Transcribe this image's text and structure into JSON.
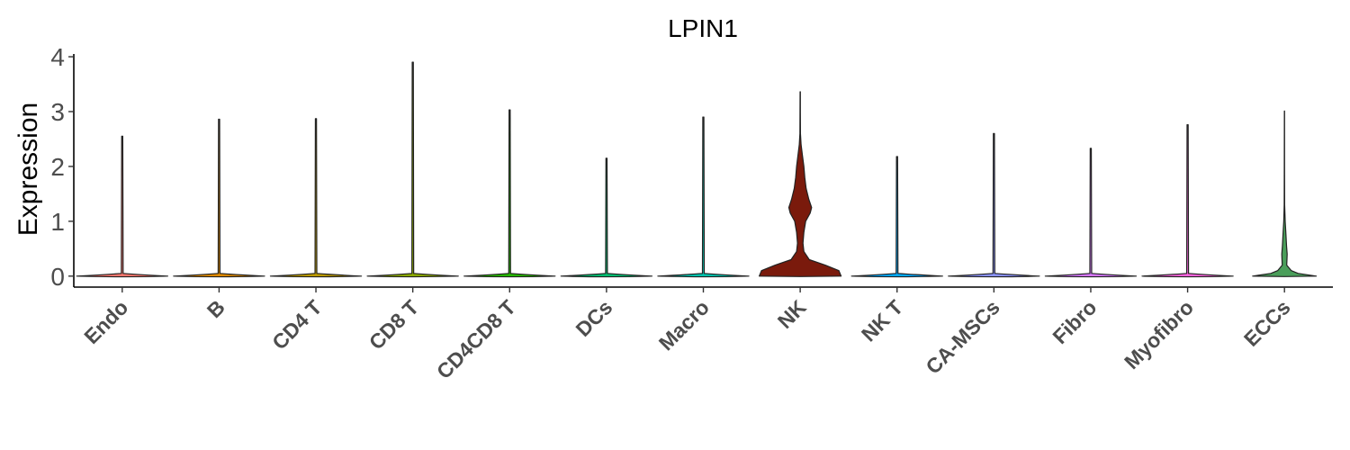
{
  "chart_data": {
    "type": "violin",
    "title": "LPIN1",
    "xlabel": "",
    "ylabel": "Expression",
    "ylim": [
      -0.2,
      4.05
    ],
    "yticks": [
      "0",
      "1",
      "2",
      "3",
      "4"
    ],
    "grid": false,
    "legend": "none",
    "categories": [
      "Endo",
      "B",
      "CD4 T",
      "CD8 T",
      "CD4CD8 T",
      "DCs",
      "Macro",
      "NK",
      "NK T",
      "CA-MSCs",
      "Fibro",
      "Myofibro",
      "ECCs"
    ],
    "max_values": [
      2.55,
      2.86,
      2.87,
      3.9,
      3.03,
      2.15,
      2.9,
      3.36,
      2.18,
      2.6,
      2.33,
      2.76,
      3.01
    ],
    "fill_colors": [
      "#F8766D",
      "#E18A00",
      "#BE9C00",
      "#8CAB00",
      "#24B700",
      "#00BE70",
      "#00C1AB",
      "#7a1a0c",
      "#00A9FF",
      "#8B93FF",
      "#D575FE",
      "#F962DD",
      "#4a9e5a"
    ],
    "highlighted": [
      {
        "category": "NK",
        "density_profile": [
          [
            0,
            0.9
          ],
          [
            0.1,
            0.85
          ],
          [
            0.2,
            0.55
          ],
          [
            0.3,
            0.2
          ],
          [
            0.45,
            0.08
          ],
          [
            0.6,
            0.06
          ],
          [
            0.8,
            0.08
          ],
          [
            1.0,
            0.12
          ],
          [
            1.15,
            0.22
          ],
          [
            1.25,
            0.25
          ],
          [
            1.4,
            0.19
          ],
          [
            1.6,
            0.13
          ],
          [
            1.8,
            0.1
          ],
          [
            2.0,
            0.08
          ],
          [
            2.2,
            0.05
          ],
          [
            2.4,
            0.02
          ],
          [
            2.6,
            0.006
          ],
          [
            3.0,
            0.004
          ],
          [
            3.36,
            0.003
          ]
        ]
      },
      {
        "category": "ECCs",
        "density_profile": [
          [
            0,
            0.7
          ],
          [
            0.05,
            0.3
          ],
          [
            0.1,
            0.15
          ],
          [
            0.2,
            0.05
          ],
          [
            0.4,
            0.06
          ],
          [
            0.55,
            0.045
          ],
          [
            0.8,
            0.03
          ],
          [
            1.0,
            0.015
          ],
          [
            1.3,
            0.005
          ],
          [
            2.0,
            0.003
          ],
          [
            3.01,
            0.002
          ]
        ]
      }
    ]
  }
}
